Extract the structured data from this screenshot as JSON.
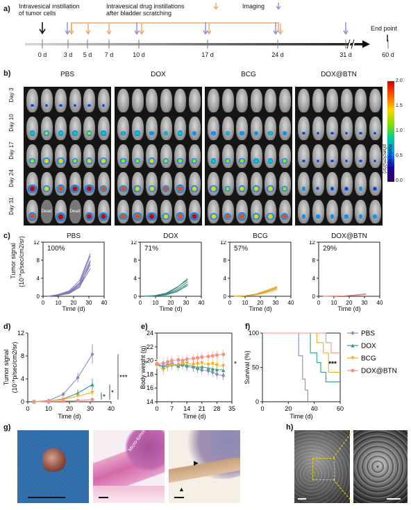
{
  "panel_letters": [
    "a)",
    "b)",
    "c)",
    "d)",
    "e)",
    "f)",
    "g)",
    "h)"
  ],
  "timeline": {
    "instillation_label": "Intravesical instillation\nof tumor cells",
    "drug_label": "Intravesical drug instillations\nafter bladder scratching",
    "imaging_label": "Imaging",
    "days": [
      "0 d",
      "3 d",
      "5 d",
      "7 d",
      "10 d",
      "17 d",
      "24 d",
      "31 d",
      "60 d"
    ],
    "end_point": "End point",
    "colors": {
      "drug": "#f4a46a",
      "imaging": "#8a8ad8",
      "axis": "#555555"
    }
  },
  "imaging": {
    "groups": [
      "PBS",
      "DOX",
      "BCG",
      "DOX@BTN"
    ],
    "days": [
      "Day 3",
      "Day 10",
      "Day 17",
      "Day 24",
      "Day 31"
    ],
    "dead_label": "Dead",
    "colorbar": {
      "ticks": [
        "2.0",
        "1.5",
        "1.0",
        "0.5",
        "0.0"
      ],
      "label": "Radiance (10⁷*\np/sec/cm2/sr)"
    }
  },
  "panel_c": {
    "ylabel": "Tumor signal",
    "ylabel2": "(10⁷*p/sec/cm2/sr)",
    "xlabel": "Time (d)",
    "charts": [
      {
        "title": "PBS",
        "percent": "100%",
        "color": "#7b78b4"
      },
      {
        "title": "DOX",
        "percent": "71%",
        "color": "#2e8b83"
      },
      {
        "title": "BCG",
        "percent": "57%",
        "color": "#e0a21c"
      },
      {
        "title": "DOX@BTN",
        "percent": "29%",
        "color": "#e9877b"
      }
    ]
  },
  "chart_data": [
    {
      "type": "line",
      "title": "PBS",
      "x": [
        3,
        10,
        17,
        24,
        31
      ],
      "series": [
        {
          "values": [
            0,
            0.2,
            0.8,
            2.5,
            7.0
          ]
        },
        {
          "values": [
            0,
            0.3,
            1.0,
            3.0,
            9.0
          ]
        },
        {
          "values": [
            0,
            0.2,
            0.7,
            2.2,
            6.2
          ]
        },
        {
          "values": [
            0,
            0.4,
            1.2,
            3.5,
            9.5
          ]
        },
        {
          "values": [
            0,
            0.3,
            0.9,
            2.8,
            8.0
          ]
        },
        {
          "values": [
            0,
            0.2,
            0.6,
            2.0,
            7.6
          ]
        }
      ],
      "xlim": [
        0,
        40
      ],
      "ylim": [
        0,
        12
      ],
      "xticks": [
        0,
        10,
        20,
        30,
        40
      ],
      "yticks": [
        0,
        4,
        8,
        12
      ]
    },
    {
      "type": "line",
      "title": "DOX",
      "x": [
        3,
        10,
        17,
        24,
        31
      ],
      "series": [
        {
          "values": [
            0,
            0.1,
            0.5,
            1.5,
            3.2
          ]
        },
        {
          "values": [
            0,
            0.1,
            0.6,
            1.9,
            3.9
          ]
        },
        {
          "values": [
            0,
            0.1,
            0.4,
            1.2,
            2.7
          ]
        },
        {
          "values": [
            0,
            0.2,
            0.7,
            2.0,
            3.6
          ]
        },
        {
          "values": [
            0,
            0.1,
            0.3,
            1.0,
            2.4
          ]
        }
      ],
      "xlim": [
        0,
        40
      ],
      "ylim": [
        0,
        12
      ],
      "xticks": [
        0,
        10,
        20,
        30,
        40
      ],
      "yticks": [
        0,
        4,
        8,
        12
      ]
    },
    {
      "type": "line",
      "title": "BCG",
      "x": [
        3,
        10,
        17,
        24,
        31
      ],
      "series": [
        {
          "values": [
            0,
            0.1,
            0.4,
            1.0,
            1.8
          ]
        },
        {
          "values": [
            0,
            0.1,
            0.5,
            1.3,
            2.2
          ]
        },
        {
          "values": [
            0,
            0.1,
            0.3,
            0.8,
            1.5
          ]
        },
        {
          "values": [
            0,
            0.1,
            0.4,
            1.1,
            2.0
          ]
        }
      ],
      "xlim": [
        0,
        40
      ],
      "ylim": [
        0,
        12
      ],
      "xticks": [
        0,
        10,
        20,
        30,
        40
      ],
      "yticks": [
        0,
        4,
        8,
        12
      ]
    },
    {
      "type": "line",
      "title": "DOX@BTN",
      "x": [
        3,
        10,
        17,
        24,
        31
      ],
      "series": [
        {
          "values": [
            0,
            0.05,
            0.1,
            0.3,
            0.6
          ]
        },
        {
          "values": [
            0,
            0.05,
            0.1,
            0.2,
            0.4
          ]
        }
      ],
      "xlim": [
        0,
        40
      ],
      "ylim": [
        0,
        12
      ],
      "xticks": [
        0,
        10,
        20,
        30,
        40
      ],
      "yticks": [
        0,
        4,
        8,
        12
      ]
    },
    {
      "type": "line",
      "ylabel": "Tumor signal",
      "ylabel2": "(10⁷*p/sec/cm2/sr)",
      "xlabel": "Time (d)",
      "x": [
        3,
        10,
        17,
        24,
        31
      ],
      "series": [
        {
          "name": "PBS",
          "color": "#8c88c4",
          "values": [
            0,
            0.2,
            1.3,
            4.2,
            8.3
          ],
          "err": [
            0,
            0.1,
            0.4,
            0.8,
            1.7
          ]
        },
        {
          "name": "DOX",
          "color": "#2e9b8f",
          "values": [
            0,
            0.1,
            0.5,
            1.5,
            3.0
          ],
          "err": [
            0,
            0.05,
            0.2,
            0.6,
            1.0
          ]
        },
        {
          "name": "BCG",
          "color": "#f0b020",
          "values": [
            0,
            0.1,
            0.4,
            1.0,
            1.6
          ],
          "err": [
            0,
            0.05,
            0.15,
            0.3,
            0.5
          ]
        },
        {
          "name": "DOX@BTN",
          "color": "#f0938a",
          "values": [
            0,
            0.05,
            0.1,
            0.2,
            0.4
          ],
          "err": [
            0,
            0.02,
            0.05,
            0.1,
            0.1
          ]
        }
      ],
      "significance": [
        "*",
        "*",
        "***"
      ],
      "xlim": [
        0,
        40
      ],
      "ylim": [
        0,
        12
      ],
      "xticks": [
        0,
        10,
        20,
        30,
        40
      ],
      "yticks": [
        0,
        4,
        8,
        12
      ]
    },
    {
      "type": "line",
      "ylabel": "Body weight (g)",
      "xlabel": "Time (d)",
      "x": [
        0,
        3,
        5,
        7,
        10,
        12,
        14,
        17,
        19,
        21,
        24,
        26,
        28,
        31
      ],
      "series": [
        {
          "name": "PBS",
          "color": "#8c88c4",
          "values": [
            19.5,
            19.2,
            19.4,
            19.6,
            19.3,
            19.5,
            19.1,
            19.0,
            18.8,
            18.6,
            18.5,
            18.3,
            18.0,
            17.8
          ]
        },
        {
          "name": "DOX",
          "color": "#2e9b8f",
          "values": [
            19.5,
            19.0,
            19.3,
            19.4,
            19.2,
            19.4,
            19.3,
            19.2,
            19.0,
            19.1,
            18.9,
            18.8,
            18.7,
            18.6
          ]
        },
        {
          "name": "BCG",
          "color": "#f0b020",
          "values": [
            19.5,
            18.6,
            19.1,
            19.3,
            19.4,
            19.5,
            19.6,
            19.4,
            19.5,
            19.6,
            19.4,
            19.5,
            19.3,
            19.2
          ]
        },
        {
          "name": "DOX@BTN",
          "color": "#f0938a",
          "values": [
            19.5,
            19.6,
            19.8,
            20.0,
            20.1,
            20.0,
            20.2,
            20.3,
            20.4,
            20.5,
            20.6,
            20.7,
            20.8,
            20.9
          ]
        }
      ],
      "significance": [
        "*"
      ],
      "xlim": [
        0,
        35
      ],
      "ylim": [
        14,
        24
      ],
      "xticks": [
        0,
        7,
        14,
        21,
        28,
        35
      ],
      "yticks": [
        14,
        16,
        18,
        20,
        22,
        24
      ]
    },
    {
      "type": "line",
      "ylabel": "Survival (%)",
      "xlabel": "Time (d)",
      "series": [
        {
          "name": "PBS",
          "color": "#8c88c4",
          "x": [
            0,
            28,
            28,
            31,
            31,
            33,
            33,
            35,
            35
          ],
          "values": [
            100,
            100,
            67,
            67,
            33,
            33,
            17,
            17,
            0
          ]
        },
        {
          "name": "DOX",
          "color": "#2e9b8f",
          "x": [
            0,
            37,
            37,
            42,
            42,
            45,
            45,
            49,
            49,
            60
          ],
          "values": [
            100,
            100,
            71,
            71,
            57,
            57,
            43,
            43,
            29,
            29
          ]
        },
        {
          "name": "BCG",
          "color": "#f0b020",
          "x": [
            0,
            42,
            42,
            47,
            47,
            51,
            51,
            60
          ],
          "values": [
            100,
            100,
            86,
            86,
            71,
            71,
            43,
            43
          ]
        },
        {
          "name": "DOX@BTN",
          "color": "#f0938a",
          "x": [
            0,
            49,
            49,
            53,
            53,
            60
          ],
          "values": [
            100,
            100,
            86,
            86,
            71,
            71
          ]
        }
      ],
      "significance": [
        "***"
      ],
      "xlim": [
        0,
        60
      ],
      "ylim": [
        0,
        100
      ],
      "xticks": [
        0,
        20,
        40,
        60
      ],
      "yticks": [
        0,
        50,
        100
      ]
    }
  ],
  "legend": [
    {
      "name": "PBS",
      "color": "#8c88c4",
      "marker": "diamond"
    },
    {
      "name": "DOX",
      "color": "#2e9b8f",
      "marker": "triangle-up"
    },
    {
      "name": "BCG",
      "color": "#f0b020",
      "marker": "triangle-down"
    },
    {
      "name": "DOX@BTN",
      "color": "#f0938a",
      "marker": "circle"
    }
  ],
  "histology": {
    "micro_tumor_label": "Micro-tumor"
  }
}
